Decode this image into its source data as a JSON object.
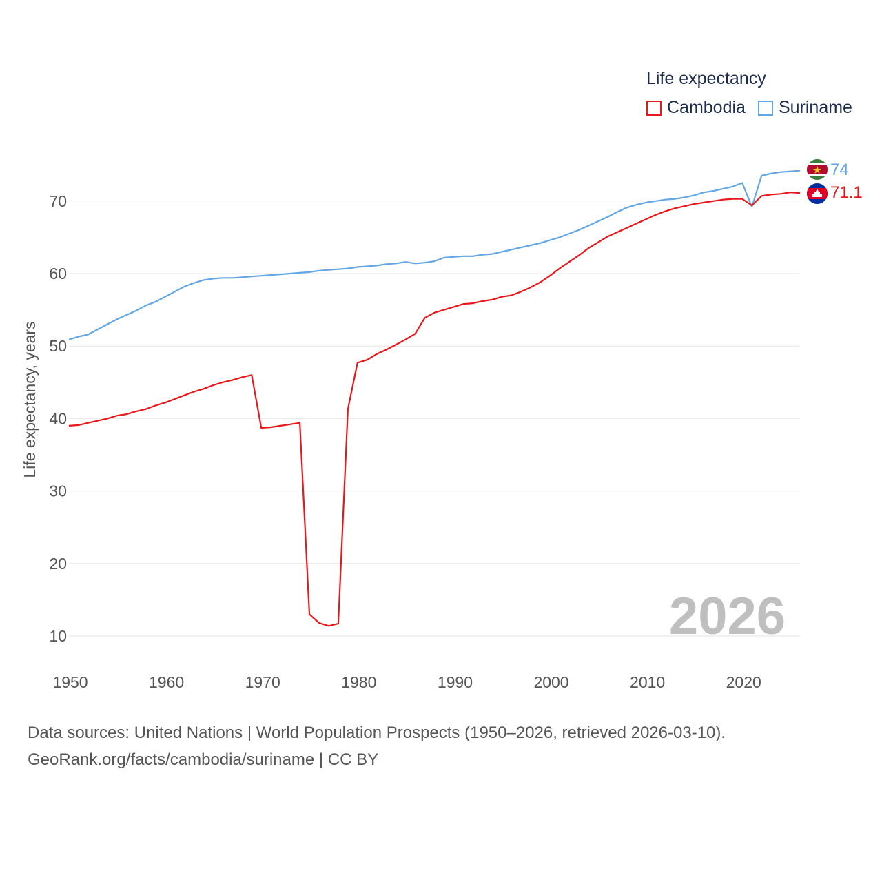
{
  "legend": {
    "title": "Life expectancy",
    "items": [
      {
        "name": "Cambodia",
        "color": "#e8171b"
      },
      {
        "name": "Suriname",
        "color": "#62a6e3"
      }
    ]
  },
  "source": {
    "line1": "Data sources: United Nations | World Population Prospects (1950–2026, retrieved 2026-03-10).",
    "line2": "GeoRank.org/facts/cambodia/suriname | CC BY"
  },
  "chart_data": {
    "type": "line",
    "title": "Life expectancy",
    "xlabel": "",
    "ylabel": "Life expectancy, years",
    "xlim": [
      1950,
      2026
    ],
    "ylim": [
      10,
      75
    ],
    "x_ticks": [
      1950,
      1960,
      1970,
      1980,
      1990,
      2000,
      2010,
      2020
    ],
    "y_ticks": [
      10,
      20,
      30,
      40,
      50,
      60,
      70
    ],
    "grid": true,
    "year_label": "2026",
    "x": [
      1950,
      1951,
      1952,
      1953,
      1954,
      1955,
      1956,
      1957,
      1958,
      1959,
      1960,
      1961,
      1962,
      1963,
      1964,
      1965,
      1966,
      1967,
      1968,
      1969,
      1970,
      1971,
      1972,
      1973,
      1974,
      1975,
      1976,
      1977,
      1978,
      1979,
      1980,
      1981,
      1982,
      1983,
      1984,
      1985,
      1986,
      1987,
      1988,
      1989,
      1990,
      1991,
      1992,
      1993,
      1994,
      1995,
      1996,
      1997,
      1998,
      1999,
      2000,
      2001,
      2002,
      2003,
      2004,
      2005,
      2006,
      2007,
      2008,
      2009,
      2010,
      2011,
      2012,
      2013,
      2014,
      2015,
      2016,
      2017,
      2018,
      2019,
      2020,
      2021,
      2022,
      2023,
      2024,
      2025,
      2026
    ],
    "series": [
      {
        "name": "Cambodia",
        "color": "#e8171b",
        "end_label": "71.1",
        "values": [
          39.0,
          39.1,
          39.4,
          39.7,
          40.0,
          40.4,
          40.6,
          41.0,
          41.3,
          41.8,
          42.2,
          42.7,
          43.2,
          43.7,
          44.1,
          44.6,
          45.0,
          45.3,
          45.7,
          46.0,
          38.7,
          38.8,
          39.0,
          39.2,
          39.4,
          13.0,
          11.8,
          11.4,
          11.7,
          41.3,
          47.7,
          48.1,
          48.9,
          49.5,
          50.2,
          50.9,
          51.7,
          53.9,
          54.6,
          55.0,
          55.4,
          55.8,
          55.9,
          56.2,
          56.4,
          56.8,
          57.0,
          57.5,
          58.1,
          58.8,
          59.7,
          60.7,
          61.6,
          62.5,
          63.5,
          64.3,
          65.1,
          65.7,
          66.3,
          66.9,
          67.5,
          68.1,
          68.6,
          69.0,
          69.3,
          69.6,
          69.8,
          70.0,
          70.2,
          70.3,
          70.3,
          69.4,
          70.7,
          70.9,
          71.0,
          71.2,
          71.1
        ]
      },
      {
        "name": "Suriname",
        "color": "#62a6e3",
        "end_label": "74",
        "values": [
          50.9,
          51.3,
          51.6,
          52.3,
          53.0,
          53.7,
          54.3,
          54.9,
          55.6,
          56.1,
          56.8,
          57.5,
          58.2,
          58.7,
          59.1,
          59.3,
          59.4,
          59.4,
          59.5,
          59.6,
          59.7,
          59.8,
          59.9,
          60.0,
          60.1,
          60.2,
          60.4,
          60.5,
          60.6,
          60.7,
          60.9,
          61.0,
          61.1,
          61.3,
          61.4,
          61.6,
          61.4,
          61.5,
          61.7,
          62.2,
          62.3,
          62.4,
          62.4,
          62.6,
          62.7,
          63.0,
          63.3,
          63.6,
          63.9,
          64.2,
          64.6,
          65.0,
          65.5,
          66.0,
          66.6,
          67.2,
          67.8,
          68.5,
          69.1,
          69.5,
          69.8,
          70.0,
          70.2,
          70.3,
          70.5,
          70.8,
          71.2,
          71.4,
          71.7,
          72.0,
          72.5,
          69.2,
          73.5,
          73.8,
          74.0,
          74.1,
          74.2
        ]
      }
    ]
  }
}
